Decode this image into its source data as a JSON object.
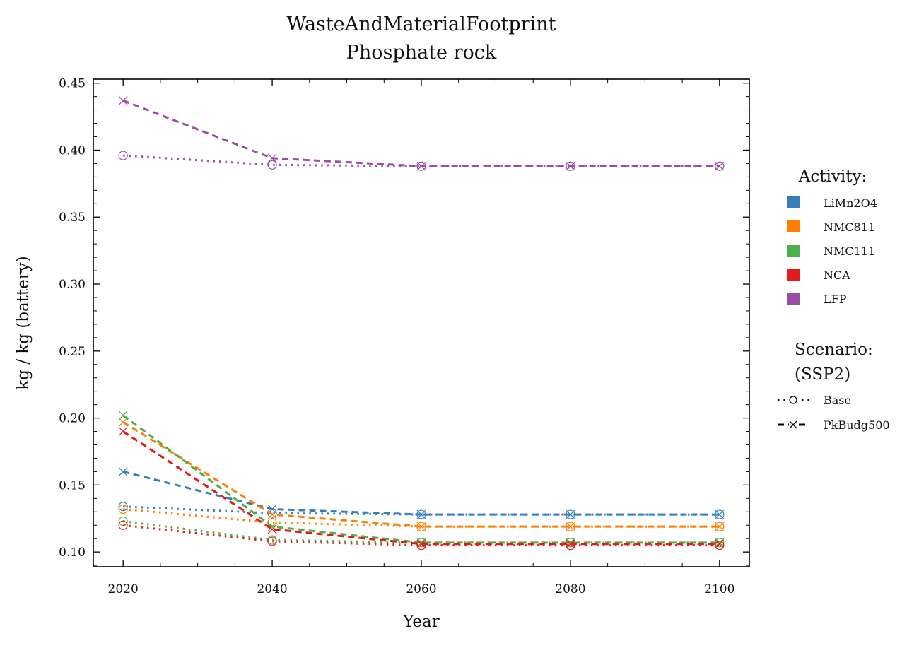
{
  "chart_data": {
    "type": "line",
    "title": "WasteAndMaterialFootprint",
    "subtitle": "Phosphate rock",
    "xlabel": "Year",
    "ylabel": "kg / kg (battery)",
    "x": [
      2020,
      2040,
      2060,
      2080,
      2100
    ],
    "xlim": [
      2016,
      2104
    ],
    "ylim": [
      0.089,
      0.453
    ],
    "xticks": [
      2020,
      2040,
      2060,
      2080,
      2100
    ],
    "xtick_labels": [
      "2020",
      "2040",
      "2060",
      "2080",
      "2100"
    ],
    "yticks": [
      0.1,
      0.15,
      0.2,
      0.25,
      0.3,
      0.35,
      0.4,
      0.45
    ],
    "ytick_labels": [
      "0.10",
      "0.15",
      "0.20",
      "0.25",
      "0.30",
      "0.35",
      "0.40",
      "0.45"
    ],
    "grid": false,
    "legend_position": "right",
    "activity_legend": {
      "title": "Activity:",
      "items": [
        {
          "name": "LiMn2O4",
          "color": "#377eb8"
        },
        {
          "name": "NMC811",
          "color": "#ff7f00"
        },
        {
          "name": "NMC111",
          "color": "#4daf4a"
        },
        {
          "name": "NCA",
          "color": "#e41a1c"
        },
        {
          "name": "LFP",
          "color": "#984ea3"
        }
      ]
    },
    "scenario_legend": {
      "title_line1": "Scenario:",
      "title_line2": "(SSP2)",
      "items": [
        {
          "name": "Base",
          "linestyle": "dotted",
          "marker": "circle"
        },
        {
          "name": "PkBudg500",
          "linestyle": "dashed",
          "marker": "x"
        }
      ]
    },
    "series": [
      {
        "activity": "LiMn2O4",
        "scenario": "Base",
        "color": "#377eb8",
        "values": [
          0.134,
          0.129,
          0.128,
          0.128,
          0.128
        ]
      },
      {
        "activity": "LiMn2O4",
        "scenario": "PkBudg500",
        "color": "#377eb8",
        "values": [
          0.16,
          0.132,
          0.128,
          0.128,
          0.128
        ]
      },
      {
        "activity": "NMC811",
        "scenario": "Base",
        "color": "#ff7f00",
        "values": [
          0.132,
          0.122,
          0.119,
          0.119,
          0.119
        ]
      },
      {
        "activity": "NMC811",
        "scenario": "PkBudg500",
        "color": "#ff7f00",
        "values": [
          0.197,
          0.128,
          0.119,
          0.119,
          0.119
        ]
      },
      {
        "activity": "NMC111",
        "scenario": "Base",
        "color": "#4daf4a",
        "values": [
          0.123,
          0.109,
          0.107,
          0.107,
          0.107
        ]
      },
      {
        "activity": "NMC111",
        "scenario": "PkBudg500",
        "color": "#4daf4a",
        "values": [
          0.202,
          0.119,
          0.107,
          0.107,
          0.107
        ]
      },
      {
        "activity": "NCA",
        "scenario": "Base",
        "color": "#e41a1c",
        "values": [
          0.12,
          0.108,
          0.105,
          0.105,
          0.105
        ]
      },
      {
        "activity": "NCA",
        "scenario": "PkBudg500",
        "color": "#e41a1c",
        "values": [
          0.19,
          0.117,
          0.106,
          0.106,
          0.106
        ]
      },
      {
        "activity": "LFP",
        "scenario": "Base",
        "color": "#984ea3",
        "values": [
          0.396,
          0.389,
          0.388,
          0.388,
          0.388
        ]
      },
      {
        "activity": "LFP",
        "scenario": "PkBudg500",
        "color": "#984ea3",
        "values": [
          0.437,
          0.394,
          0.388,
          0.388,
          0.388
        ]
      }
    ]
  }
}
